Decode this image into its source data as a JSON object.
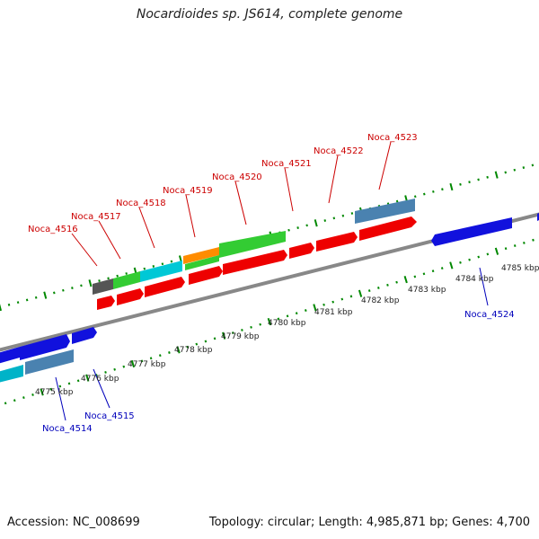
{
  "title": "Nocardioides sp. JS614, complete genome",
  "footer": {
    "accession": "Accession: NC_008699",
    "stats": "Topology: circular; Length: 4,985,871 bp; Genes: 4,700"
  },
  "colors": {
    "forward_label": "#cc0000",
    "reverse_label": "#0000bb",
    "tick": "#008800",
    "backbone": "#888888",
    "cds_forward": "#ee0000",
    "cds_reverse": "#1111dd"
  },
  "scale_labels": [
    "4775 kbp",
    "4776 kbp",
    "4777 kbp",
    "4778 kbp",
    "4779 kbp",
    "4780 kbp",
    "4781 kbp",
    "4782 kbp",
    "4783 kbp",
    "4784 kbp",
    "4785 kbp"
  ],
  "forward_gene_labels": [
    "Noca_4516",
    "Noca_4517",
    "Noca_4518",
    "Noca_4519",
    "Noca_4520",
    "Noca_4521",
    "Noca_4522",
    "Noca_4523"
  ],
  "reverse_gene_labels": [
    "Noca_4514",
    "Noca_4515",
    "Noca_4524"
  ]
}
